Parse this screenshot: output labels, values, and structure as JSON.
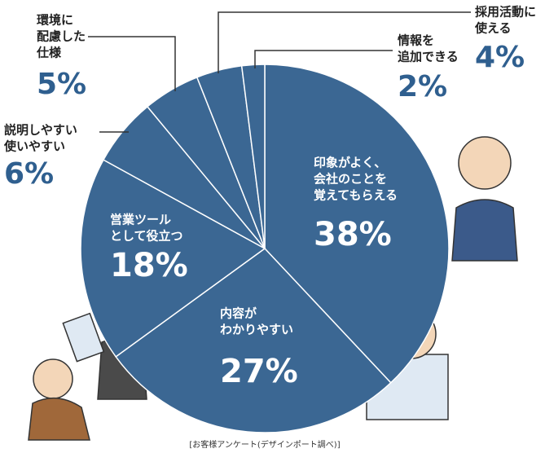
{
  "chart_data": {
    "type": "pie",
    "color": "#3b6793",
    "categories": [
      [
        "印象がよく、",
        "会社のことを",
        "覚えてもらえる"
      ],
      [
        "内容が",
        "わかりやすい"
      ],
      [
        "営業ツール",
        "として役立つ"
      ],
      [
        "説明しやすい",
        "使いやすい"
      ],
      [
        "環境に",
        "配慮した",
        "仕様"
      ],
      [
        "採用活動に",
        "使える"
      ],
      [
        "情報を",
        "追加できる"
      ]
    ],
    "values": [
      38,
      27,
      18,
      6,
      5,
      4,
      2
    ],
    "value_labels": [
      "38%",
      "27%",
      "18%",
      "6%",
      "5%",
      "4%",
      "2%"
    ],
    "source": "[お客様アンケート(デザインポート調べ)]"
  }
}
